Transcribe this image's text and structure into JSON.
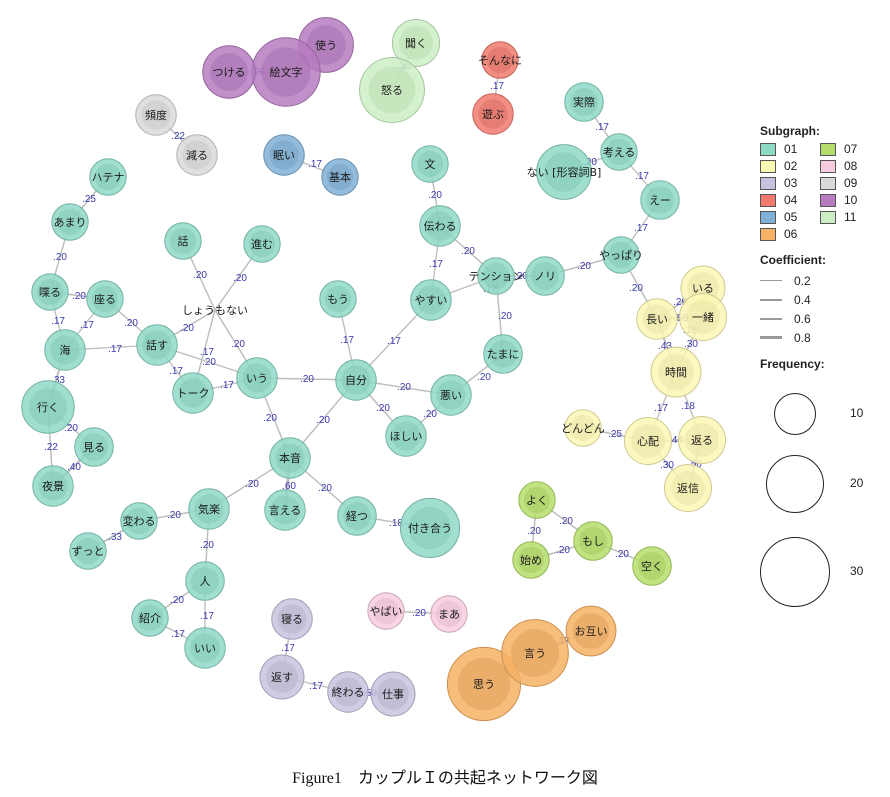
{
  "figure": {
    "caption": "Figure1　カップルＩの共起ネットワーク図"
  },
  "subgraph_colors": {
    "01": "#8fd9c7",
    "02": "#fbf7b5",
    "03": "#c9c2de",
    "04": "#f07a6e",
    "05": "#80b0d6",
    "06": "#f6b164",
    "07": "#b6dd6b",
    "08": "#f8cce0",
    "09": "#d9d9d9",
    "10": "#b67bc0",
    "11": "#cbefc3"
  },
  "legend": {
    "subgraph_title": "Subgraph:",
    "subgraph_items": [
      {
        "id": "01",
        "label": "01",
        "color": "#8fd9c7"
      },
      {
        "id": "07",
        "label": "07",
        "color": "#b6dd6b"
      },
      {
        "id": "02",
        "label": "02",
        "color": "#fbf7b5"
      },
      {
        "id": "08",
        "label": "08",
        "color": "#f8cce0"
      },
      {
        "id": "03",
        "label": "03",
        "color": "#c9c2de"
      },
      {
        "id": "09",
        "label": "09",
        "color": "#d9d9d9"
      },
      {
        "id": "04",
        "label": "04",
        "color": "#f07a6e"
      },
      {
        "id": "10",
        "label": "10",
        "color": "#b67bc0"
      },
      {
        "id": "05",
        "label": "05",
        "color": "#80b0d6"
      },
      {
        "id": "11",
        "label": "11",
        "color": "#cbefc3"
      },
      {
        "id": "06",
        "label": "06",
        "color": "#f6b164"
      }
    ],
    "coefficient_title": "Coefficient:",
    "coefficient_items": [
      {
        "label": "0.2",
        "value": 0.2
      },
      {
        "label": "0.4",
        "value": 0.4
      },
      {
        "label": "0.6",
        "value": 0.6
      },
      {
        "label": "0.8",
        "value": 0.8
      }
    ],
    "frequency_title": "Frequency:",
    "frequency_items": [
      {
        "label": "10",
        "value": 10
      },
      {
        "label": "20",
        "value": 20
      },
      {
        "label": "30",
        "value": 30
      }
    ]
  },
  "network": {
    "nodes": [
      {
        "id": "kiite",
        "label": "聞く",
        "group": "11",
        "freq": 10
      },
      {
        "id": "okoru",
        "label": "怒る",
        "group": "11",
        "freq": 26
      },
      {
        "id": "tsukau",
        "label": "使う",
        "group": "10",
        "freq": 16
      },
      {
        "id": "emoji",
        "label": "絵文字",
        "group": "10",
        "freq": 30
      },
      {
        "id": "tsukeru",
        "label": "つける",
        "group": "10",
        "freq": 14
      },
      {
        "id": "sonnani",
        "label": "そんなに",
        "group": "04",
        "freq": 4
      },
      {
        "id": "asobu",
        "label": "遊ぶ",
        "group": "04",
        "freq": 6
      },
      {
        "id": "hindo",
        "label": "頻度",
        "group": "09",
        "freq": 6
      },
      {
        "id": "heru",
        "label": "減る",
        "group": "09",
        "freq": 6
      },
      {
        "id": "nemui",
        "label": "眠い",
        "group": "05",
        "freq": 6
      },
      {
        "id": "kihon",
        "label": "基本",
        "group": "05",
        "freq": 4
      },
      {
        "id": "jissai",
        "label": "実際",
        "group": "01",
        "freq": 5
      },
      {
        "id": "kangaeru",
        "label": "考える",
        "group": "01",
        "freq": 4
      },
      {
        "id": "nai",
        "label": "ない [形容詞B]",
        "group": "01",
        "freq": 16
      },
      {
        "id": "ee",
        "label": "えー",
        "group": "01",
        "freq": 5
      },
      {
        "id": "yappari",
        "label": "やっぱり",
        "group": "01",
        "freq": 4
      },
      {
        "id": "nori",
        "label": "ノリ",
        "group": "01",
        "freq": 5
      },
      {
        "id": "tension",
        "label": "テンション",
        "group": "01",
        "freq": 4
      },
      {
        "id": "bun",
        "label": "文",
        "group": "01",
        "freq": 4
      },
      {
        "id": "tsutawaru",
        "label": "伝わる",
        "group": "01",
        "freq": 6
      },
      {
        "id": "yasui",
        "label": "やすい",
        "group": "01",
        "freq": 6
      },
      {
        "id": "tamani",
        "label": "たまに",
        "group": "01",
        "freq": 5
      },
      {
        "id": "mou",
        "label": "もう",
        "group": "01",
        "freq": 4
      },
      {
        "id": "jibun",
        "label": "自分",
        "group": "01",
        "freq": 6
      },
      {
        "id": "warui",
        "label": "悪い",
        "group": "01",
        "freq": 6
      },
      {
        "id": "hoshii",
        "label": "ほしい",
        "group": "01",
        "freq": 6
      },
      {
        "id": "hanashi",
        "label": "話",
        "group": "01",
        "freq": 4
      },
      {
        "id": "susumu",
        "label": "進む",
        "group": "01",
        "freq": 4
      },
      {
        "id": "shoumonai",
        "label": "しょうもない",
        "group": "01",
        "freq": 1
      },
      {
        "id": "iu",
        "label": "いう",
        "group": "01",
        "freq": 6
      },
      {
        "id": "hanasu",
        "label": "話す",
        "group": "01",
        "freq": 6
      },
      {
        "id": "talk",
        "label": "トーク",
        "group": "01",
        "freq": 6
      },
      {
        "id": "hatena",
        "label": "ハテナ",
        "group": "01",
        "freq": 4
      },
      {
        "id": "amari",
        "label": "あまり",
        "group": "01",
        "freq": 4
      },
      {
        "id": "shaberu",
        "label": "喋る",
        "group": "01",
        "freq": 4
      },
      {
        "id": "suwaru",
        "label": "座る",
        "group": "01",
        "freq": 4
      },
      {
        "id": "umi",
        "label": "海",
        "group": "01",
        "freq": 6
      },
      {
        "id": "iku",
        "label": "行く",
        "group": "01",
        "freq": 14
      },
      {
        "id": "miru",
        "label": "見る",
        "group": "01",
        "freq": 5
      },
      {
        "id": "yoake",
        "label": "夜景",
        "group": "01",
        "freq": 6
      },
      {
        "id": "honne",
        "label": "本音",
        "group": "01",
        "freq": 6
      },
      {
        "id": "ieru",
        "label": "言える",
        "group": "01",
        "freq": 6
      },
      {
        "id": "tatsu",
        "label": "経つ",
        "group": "01",
        "freq": 5
      },
      {
        "id": "tsukiau",
        "label": "付き合う",
        "group": "01",
        "freq": 20
      },
      {
        "id": "kiraku",
        "label": "気楽",
        "group": "01",
        "freq": 6
      },
      {
        "id": "kawaru",
        "label": "変わる",
        "group": "01",
        "freq": 4
      },
      {
        "id": "zutto",
        "label": "ずっと",
        "group": "01",
        "freq": 4
      },
      {
        "id": "hito",
        "label": "人",
        "group": "01",
        "freq": 5
      },
      {
        "id": "shoukai",
        "label": "紹介",
        "group": "01",
        "freq": 4
      },
      {
        "id": "ii",
        "label": "いい",
        "group": "01",
        "freq": 6
      },
      {
        "id": "iru",
        "label": "いる",
        "group": "02",
        "freq": 8
      },
      {
        "id": "nagai",
        "label": "長い",
        "group": "02",
        "freq": 6
      },
      {
        "id": "issho",
        "label": "一緒",
        "group": "02",
        "freq": 10
      },
      {
        "id": "jikan",
        "label": "時間",
        "group": "02",
        "freq": 12
      },
      {
        "id": "dondon",
        "label": "どんどん",
        "group": "02",
        "freq": 4
      },
      {
        "id": "shinpai",
        "label": "心配",
        "group": "02",
        "freq": 10
      },
      {
        "id": "kaesu",
        "label": "返る",
        "group": "02",
        "freq": 10
      },
      {
        "id": "henshin",
        "label": "返信",
        "group": "02",
        "freq": 10
      },
      {
        "id": "yoku",
        "label": "よく",
        "group": "07",
        "freq": 4
      },
      {
        "id": "moshi",
        "label": "もし",
        "group": "07",
        "freq": 5
      },
      {
        "id": "hajime",
        "label": "始め",
        "group": "07",
        "freq": 4
      },
      {
        "id": "aku",
        "label": "空く",
        "group": "07",
        "freq": 5
      },
      {
        "id": "yabai",
        "label": "やばい",
        "group": "08",
        "freq": 4
      },
      {
        "id": "maa",
        "label": "まあ",
        "group": "08",
        "freq": 4
      },
      {
        "id": "neru",
        "label": "寝る",
        "group": "03",
        "freq": 6
      },
      {
        "id": "kaesu2",
        "label": "返す",
        "group": "03",
        "freq": 8
      },
      {
        "id": "owaru",
        "label": "終わる",
        "group": "03",
        "freq": 6
      },
      {
        "id": "shigoto",
        "label": "仕事",
        "group": "03",
        "freq": 8
      },
      {
        "id": "otagai",
        "label": "お互い",
        "group": "06",
        "freq": 12
      },
      {
        "id": "omou",
        "label": "思う",
        "group": "06",
        "freq": 36
      },
      {
        "id": "iu2",
        "label": "言う",
        "group": "06",
        "freq": 28
      }
    ],
    "edges": [
      {
        "source": "kiite",
        "target": "okoru",
        "weight": 0.3,
        "label": ".30"
      },
      {
        "source": "tsukau",
        "target": "emoji",
        "weight": 0.29,
        "label": ".29"
      },
      {
        "source": "tsukeru",
        "target": "emoji",
        "weight": 0.26,
        "label": ".26"
      },
      {
        "source": "sonnani",
        "target": "asobu",
        "weight": 0.17,
        "label": ".17"
      },
      {
        "source": "hindo",
        "target": "heru",
        "weight": 0.22,
        "label": ".22"
      },
      {
        "source": "nemui",
        "target": "kihon",
        "weight": 0.17,
        "label": ".17"
      },
      {
        "source": "jissai",
        "target": "kangaeru",
        "weight": 0.17,
        "label": ".17"
      },
      {
        "source": "kangaeru",
        "target": "nai",
        "weight": 0.2,
        "label": ".20"
      },
      {
        "source": "kangaeru",
        "target": "ee",
        "weight": 0.17,
        "label": ".17"
      },
      {
        "source": "ee",
        "target": "yappari",
        "weight": 0.17,
        "label": ".17"
      },
      {
        "source": "yappari",
        "target": "nori",
        "weight": 0.2,
        "label": ".20"
      },
      {
        "source": "nori",
        "target": "tension",
        "weight": 0.2,
        "label": ".20"
      },
      {
        "source": "yappari",
        "target": "nagai",
        "weight": 0.2,
        "label": ".20"
      },
      {
        "source": "bun",
        "target": "tsutawaru",
        "weight": 0.2,
        "label": ".20"
      },
      {
        "source": "tsutawaru",
        "target": "tension",
        "weight": 0.2,
        "label": ".20"
      },
      {
        "source": "tsutawaru",
        "target": "yasui",
        "weight": 0.17,
        "label": ".17"
      },
      {
        "source": "tension",
        "target": "yasui",
        "weight": 0.17,
        "label": ".17"
      },
      {
        "source": "tension",
        "target": "tamani",
        "weight": 0.2,
        "label": ".20"
      },
      {
        "source": "tamani",
        "target": "warui",
        "weight": 0.2,
        "label": ".20"
      },
      {
        "source": "yasui",
        "target": "jibun",
        "weight": 0.17,
        "label": ".17"
      },
      {
        "source": "mou",
        "target": "jibun",
        "weight": 0.17,
        "label": ".17"
      },
      {
        "source": "jibun",
        "target": "warui",
        "weight": 0.2,
        "label": ".20"
      },
      {
        "source": "jibun",
        "target": "hoshii",
        "weight": 0.2,
        "label": ".20"
      },
      {
        "source": "warui",
        "target": "hoshii",
        "weight": 0.2,
        "label": ".20"
      },
      {
        "source": "jibun",
        "target": "iu",
        "weight": 0.2,
        "label": ".20"
      },
      {
        "source": "jibun",
        "target": "honne",
        "weight": 0.2,
        "label": ".20"
      },
      {
        "source": "hanashi",
        "target": "shoumonai",
        "weight": 0.2,
        "label": ".20"
      },
      {
        "source": "susumu",
        "target": "shoumonai",
        "weight": 0.2,
        "label": ".20"
      },
      {
        "source": "shoumonai",
        "target": "hanasu",
        "weight": 0.2,
        "label": ".20"
      },
      {
        "source": "shoumonai",
        "target": "iu",
        "weight": 0.2,
        "label": ".20"
      },
      {
        "source": "shoumonai",
        "target": "talk",
        "weight": 0.2,
        "label": ".20"
      },
      {
        "source": "hanasu",
        "target": "iu",
        "weight": 0.17,
        "label": ".17"
      },
      {
        "source": "hanasu",
        "target": "talk",
        "weight": 0.17,
        "label": ".17"
      },
      {
        "source": "talk",
        "target": "iu",
        "weight": 0.17,
        "label": ".17"
      },
      {
        "source": "iu",
        "target": "honne",
        "weight": 0.2,
        "label": ".20"
      },
      {
        "source": "hatena",
        "target": "amari",
        "weight": 0.25,
        "label": ".25"
      },
      {
        "source": "amari",
        "target": "shaberu",
        "weight": 0.2,
        "label": ".20"
      },
      {
        "source": "shaberu",
        "target": "suwaru",
        "weight": 0.2,
        "label": ".20"
      },
      {
        "source": "shaberu",
        "target": "umi",
        "weight": 0.17,
        "label": ".17"
      },
      {
        "source": "suwaru",
        "target": "umi",
        "weight": 0.17,
        "label": ".17"
      },
      {
        "source": "suwaru",
        "target": "hanasu",
        "weight": 0.2,
        "label": ".20"
      },
      {
        "source": "umi",
        "target": "hanasu",
        "weight": 0.17,
        "label": ".17"
      },
      {
        "source": "umi",
        "target": "iku",
        "weight": 0.33,
        "label": ".33"
      },
      {
        "source": "iku",
        "target": "miru",
        "weight": 0.2,
        "label": ".20"
      },
      {
        "source": "iku",
        "target": "yoake",
        "weight": 0.22,
        "label": ".22"
      },
      {
        "source": "miru",
        "target": "yoake",
        "weight": 0.4,
        "label": ".40"
      },
      {
        "source": "honne",
        "target": "ieru",
        "weight": 0.6,
        "label": ".60"
      },
      {
        "source": "honne",
        "target": "tatsu",
        "weight": 0.2,
        "label": ".20"
      },
      {
        "source": "tatsu",
        "target": "tsukiau",
        "weight": 0.18,
        "label": ".18"
      },
      {
        "source": "honne",
        "target": "kiraku",
        "weight": 0.2,
        "label": ".20"
      },
      {
        "source": "kiraku",
        "target": "kawaru",
        "weight": 0.2,
        "label": ".20"
      },
      {
        "source": "kawaru",
        "target": "zutto",
        "weight": 0.33,
        "label": ".33"
      },
      {
        "source": "kiraku",
        "target": "hito",
        "weight": 0.2,
        "label": ".20"
      },
      {
        "source": "hito",
        "target": "shoukai",
        "weight": 0.2,
        "label": ".20"
      },
      {
        "source": "hito",
        "target": "ii",
        "weight": 0.17,
        "label": ".17"
      },
      {
        "source": "shoukai",
        "target": "ii",
        "weight": 0.17,
        "label": ".17"
      },
      {
        "source": "nagai",
        "target": "iru",
        "weight": 0.29,
        "label": ".29"
      },
      {
        "source": "iru",
        "target": "issho",
        "weight": 0.5,
        "label": ".50"
      },
      {
        "source": "nagai",
        "target": "issho",
        "weight": 0.5,
        "label": ".50"
      },
      {
        "source": "nagai",
        "target": "jikan",
        "weight": 0.43,
        "label": ".43"
      },
      {
        "source": "issho",
        "target": "jikan",
        "weight": 0.3,
        "label": ".30"
      },
      {
        "source": "issho",
        "target": "nagai",
        "weight": 0.18,
        "label": ".18"
      },
      {
        "source": "jikan",
        "target": "shinpai",
        "weight": 0.17,
        "label": ".17"
      },
      {
        "source": "jikan",
        "target": "kaesu",
        "weight": 0.18,
        "label": ".18"
      },
      {
        "source": "dondon",
        "target": "shinpai",
        "weight": 0.25,
        "label": ".25"
      },
      {
        "source": "shinpai",
        "target": "kaesu",
        "weight": 0.44,
        "label": ".44"
      },
      {
        "source": "shinpai",
        "target": "henshin",
        "weight": 0.3,
        "label": ".30"
      },
      {
        "source": "kaesu",
        "target": "henshin",
        "weight": 0.5,
        "label": ".50"
      },
      {
        "source": "yoku",
        "target": "moshi",
        "weight": 0.2,
        "label": ".20"
      },
      {
        "source": "yoku",
        "target": "hajime",
        "weight": 0.2,
        "label": ".20"
      },
      {
        "source": "hajime",
        "target": "moshi",
        "weight": 0.2,
        "label": ".20"
      },
      {
        "source": "moshi",
        "target": "aku",
        "weight": 0.2,
        "label": ".20"
      },
      {
        "source": "yabai",
        "target": "maa",
        "weight": 0.2,
        "label": ".20"
      },
      {
        "source": "neru",
        "target": "kaesu2",
        "weight": 0.17,
        "label": ".17"
      },
      {
        "source": "kaesu2",
        "target": "owaru",
        "weight": 0.17,
        "label": ".17"
      },
      {
        "source": "owaru",
        "target": "shigoto",
        "weight": 0.5,
        "label": ".50"
      },
      {
        "source": "omou",
        "target": "iu2",
        "weight": 0.18,
        "label": ".18"
      },
      {
        "source": "iu2",
        "target": "otagai",
        "weight": 0.17,
        "label": ".17"
      }
    ]
  }
}
